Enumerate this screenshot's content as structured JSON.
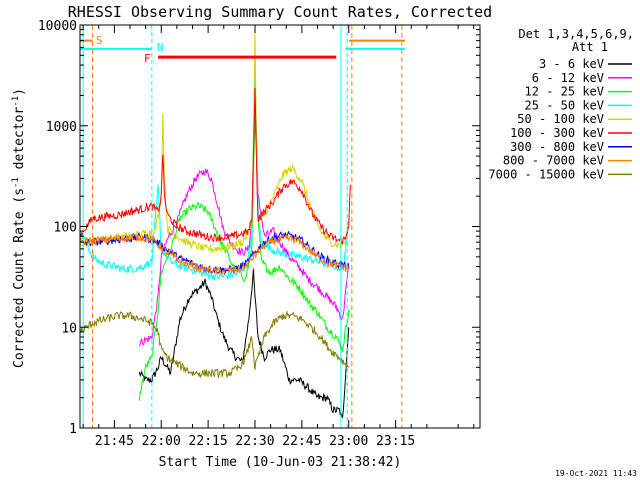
{
  "chart_data": {
    "type": "line",
    "title": "RHESSI Observing Summary Count Rates, Corrected",
    "xlabel": "Start Time (10-Jun-03 21:38:42)",
    "ylabel": "Corrected Count Rate (s",
    "ylabel_sup": "-1",
    "ylabel_tail": " detector",
    "ylabel_close": ")",
    "y_scale": "log",
    "ylim": [
      1,
      10000
    ],
    "xlim_minutes": [
      -26,
      102
    ],
    "x_ticks": [
      {
        "m": -15,
        "label": "21:45"
      },
      {
        "m": 0,
        "label": "22:00"
      },
      {
        "m": 15,
        "label": "22:15"
      },
      {
        "m": 30,
        "label": "22:30"
      },
      {
        "m": 45,
        "label": "22:45"
      },
      {
        "m": 60,
        "label": "23:00"
      },
      {
        "m": 75,
        "label": "23:15"
      }
    ],
    "y_ticks": [
      {
        "v": 1,
        "label": "1"
      },
      {
        "v": 10,
        "label": "10"
      },
      {
        "v": 100,
        "label": "100"
      },
      {
        "v": 1000,
        "label": "1000"
      },
      {
        "v": 10000,
        "label": "10000"
      }
    ],
    "legend_header": [
      "Det 1,3,4,5,6,9,",
      "Att 1"
    ],
    "annotations": {
      "S": "S",
      "N": "N",
      "F": "F"
    },
    "footer": "19-Oct-2021 11:43",
    "markers": {
      "flare_bar": {
        "from": -1,
        "to": 56,
        "value": 4800,
        "color": "#ff0000"
      },
      "saa_left": {
        "from": -26,
        "to": -22,
        "value": 7000,
        "color": "#ff8000"
      },
      "saa_right": {
        "from": 60,
        "to": 78,
        "value": 7000,
        "color": "#ff8000"
      },
      "night_left": {
        "from": -26,
        "to": -3,
        "value": 5800,
        "color": "#00ffff"
      },
      "night_right": {
        "from": 59,
        "to": 78,
        "value": 5800,
        "color": "#00ffff"
      },
      "cyan_vlines": [
        -25,
        -3,
        57.5,
        59.5
      ],
      "orange_vlines": [
        -22,
        61,
        77
      ]
    },
    "series": [
      {
        "name": "3 - 6 keV",
        "color": "#000000",
        "x": [
          -7,
          -5,
          -3,
          -1,
          0,
          3,
          6,
          9,
          12,
          14,
          16,
          18,
          20,
          22,
          24,
          26,
          28,
          29,
          29.5,
          30,
          31,
          33,
          35,
          38,
          41,
          44,
          47,
          50,
          53,
          55,
          57,
          58,
          60
        ],
        "values": [
          3.5,
          3,
          3,
          4,
          5,
          3.5,
          12,
          20,
          24,
          28,
          20,
          12,
          8,
          6,
          5,
          4.5,
          12,
          25,
          35,
          20,
          8,
          5,
          6,
          6,
          3,
          3,
          2.5,
          2,
          2,
          1.5,
          1.5,
          1.2,
          10
        ]
      },
      {
        "name": "6 - 12 keV",
        "color": "#ff00ff",
        "x": [
          -7,
          -5,
          -3,
          -1,
          0,
          2,
          5,
          8,
          11,
          14,
          16,
          18,
          20,
          22,
          24,
          26,
          28,
          29,
          30,
          31,
          33,
          36,
          38,
          41,
          44,
          47,
          50,
          53,
          56,
          58,
          60
        ],
        "values": [
          7,
          7.5,
          8,
          20,
          50,
          75,
          110,
          200,
          300,
          360,
          300,
          170,
          90,
          70,
          60,
          55,
          60,
          120,
          1500,
          200,
          80,
          90,
          70,
          50,
          40,
          30,
          25,
          20,
          16,
          12,
          40
        ]
      },
      {
        "name": "12 - 25 keV",
        "color": "#00ff00",
        "x": [
          -7,
          -5,
          -3,
          -1,
          0,
          3,
          6,
          9,
          12,
          15,
          17,
          19,
          21,
          23,
          25,
          27,
          29,
          30,
          31,
          32,
          35,
          38,
          41,
          44,
          47,
          50,
          53,
          56,
          58,
          60
        ],
        "values": [
          2,
          4,
          5,
          15,
          35,
          60,
          120,
          150,
          160,
          140,
          100,
          70,
          55,
          40,
          35,
          30,
          60,
          1500,
          120,
          45,
          35,
          40,
          30,
          25,
          18,
          14,
          10,
          8,
          6,
          15
        ]
      },
      {
        "name": "25 - 50 keV",
        "color": "#00ffff",
        "x": [
          -26,
          -24,
          -22,
          -20,
          -18,
          -15,
          -12,
          -9,
          -6,
          -3,
          -1,
          0,
          3,
          6,
          9,
          12,
          15,
          18,
          21,
          24,
          27,
          29,
          30,
          31,
          32,
          35,
          38,
          41,
          44,
          47,
          50,
          53,
          56,
          58,
          60
        ],
        "values": [
          85,
          70,
          50,
          45,
          42,
          40,
          38,
          38,
          40,
          45,
          250,
          60,
          45,
          40,
          38,
          35,
          33,
          32,
          32,
          34,
          40,
          80,
          3500,
          150,
          70,
          60,
          55,
          52,
          50,
          48,
          45,
          42,
          40,
          38,
          100
        ]
      },
      {
        "name": "50 - 100 keV",
        "color": "#d4d400",
        "x": [
          -26,
          -22,
          -18,
          -14,
          -10,
          -6,
          -2,
          0,
          0.5,
          1,
          2,
          5,
          8,
          11,
          14,
          17,
          20,
          23,
          26,
          29,
          29.5,
          30,
          30.5,
          31,
          33,
          36,
          39,
          42,
          45,
          48,
          51,
          54,
          57,
          59,
          60
        ],
        "values": [
          70,
          72,
          75,
          78,
          80,
          85,
          90,
          200,
          1300,
          300,
          95,
          80,
          70,
          65,
          60,
          60,
          62,
          65,
          70,
          100,
          800,
          8000,
          500,
          110,
          130,
          200,
          330,
          380,
          280,
          150,
          90,
          70,
          65,
          70,
          120
        ]
      },
      {
        "name": "100 - 300 keV",
        "color": "#ff0000",
        "x": [
          -26,
          -24,
          -22,
          -18,
          -14,
          -10,
          -6,
          -3,
          -1,
          0,
          0.5,
          1,
          2,
          5,
          8,
          11,
          14,
          17,
          20,
          23,
          26,
          28,
          29,
          29.5,
          30,
          30.5,
          31,
          33,
          36,
          39,
          42,
          45,
          48,
          51,
          54,
          57,
          59,
          60,
          60.5
        ],
        "values": [
          80,
          100,
          120,
          125,
          130,
          140,
          150,
          160,
          140,
          200,
          550,
          200,
          130,
          100,
          90,
          85,
          80,
          78,
          78,
          80,
          85,
          90,
          120,
          500,
          2300,
          400,
          120,
          140,
          180,
          250,
          280,
          230,
          140,
          100,
          80,
          72,
          75,
          110,
          260
        ]
      },
      {
        "name": "300 - 800 keV",
        "color": "#0000ff",
        "x": [
          -26,
          -22,
          -18,
          -14,
          -10,
          -6,
          -3,
          0,
          3,
          6,
          9,
          12,
          15,
          18,
          21,
          24,
          27,
          30,
          33,
          36,
          39,
          42,
          45,
          48,
          51,
          54,
          57,
          60
        ],
        "values": [
          68,
          70,
          72,
          74,
          76,
          78,
          75,
          65,
          55,
          48,
          44,
          40,
          38,
          37,
          37,
          38,
          42,
          55,
          70,
          78,
          82,
          80,
          72,
          60,
          50,
          45,
          42,
          40
        ]
      },
      {
        "name": "800 - 7000 keV",
        "color": "#ff8000",
        "x": [
          -26,
          -22,
          -18,
          -14,
          -10,
          -6,
          -3,
          0,
          3,
          6,
          9,
          12,
          15,
          18,
          21,
          24,
          27,
          30,
          33,
          36,
          39,
          42,
          45,
          48,
          51,
          54,
          57,
          60
        ],
        "values": [
          70,
          72,
          74,
          76,
          78,
          78,
          75,
          62,
          52,
          45,
          42,
          39,
          37,
          36,
          36,
          37,
          40,
          52,
          65,
          72,
          76,
          75,
          68,
          56,
          48,
          43,
          40,
          38
        ]
      },
      {
        "name": "7000 - 15000 keV",
        "color": "#808000",
        "x": [
          -26,
          -22,
          -18,
          -14,
          -10,
          -6,
          -3,
          -1,
          0,
          2,
          4,
          7,
          10,
          13,
          16,
          19,
          22,
          25,
          27,
          29,
          30,
          31,
          33,
          36,
          39,
          42,
          45,
          48,
          51,
          54,
          57,
          60
        ],
        "values": [
          9,
          11,
          12,
          13,
          13,
          12,
          11,
          9,
          6,
          5,
          4.5,
          4,
          3.5,
          3.5,
          3.5,
          3.5,
          3.5,
          4,
          5,
          8,
          4,
          5,
          8,
          11,
          13,
          13,
          12,
          10,
          8,
          6,
          5,
          4
        ]
      }
    ]
  }
}
